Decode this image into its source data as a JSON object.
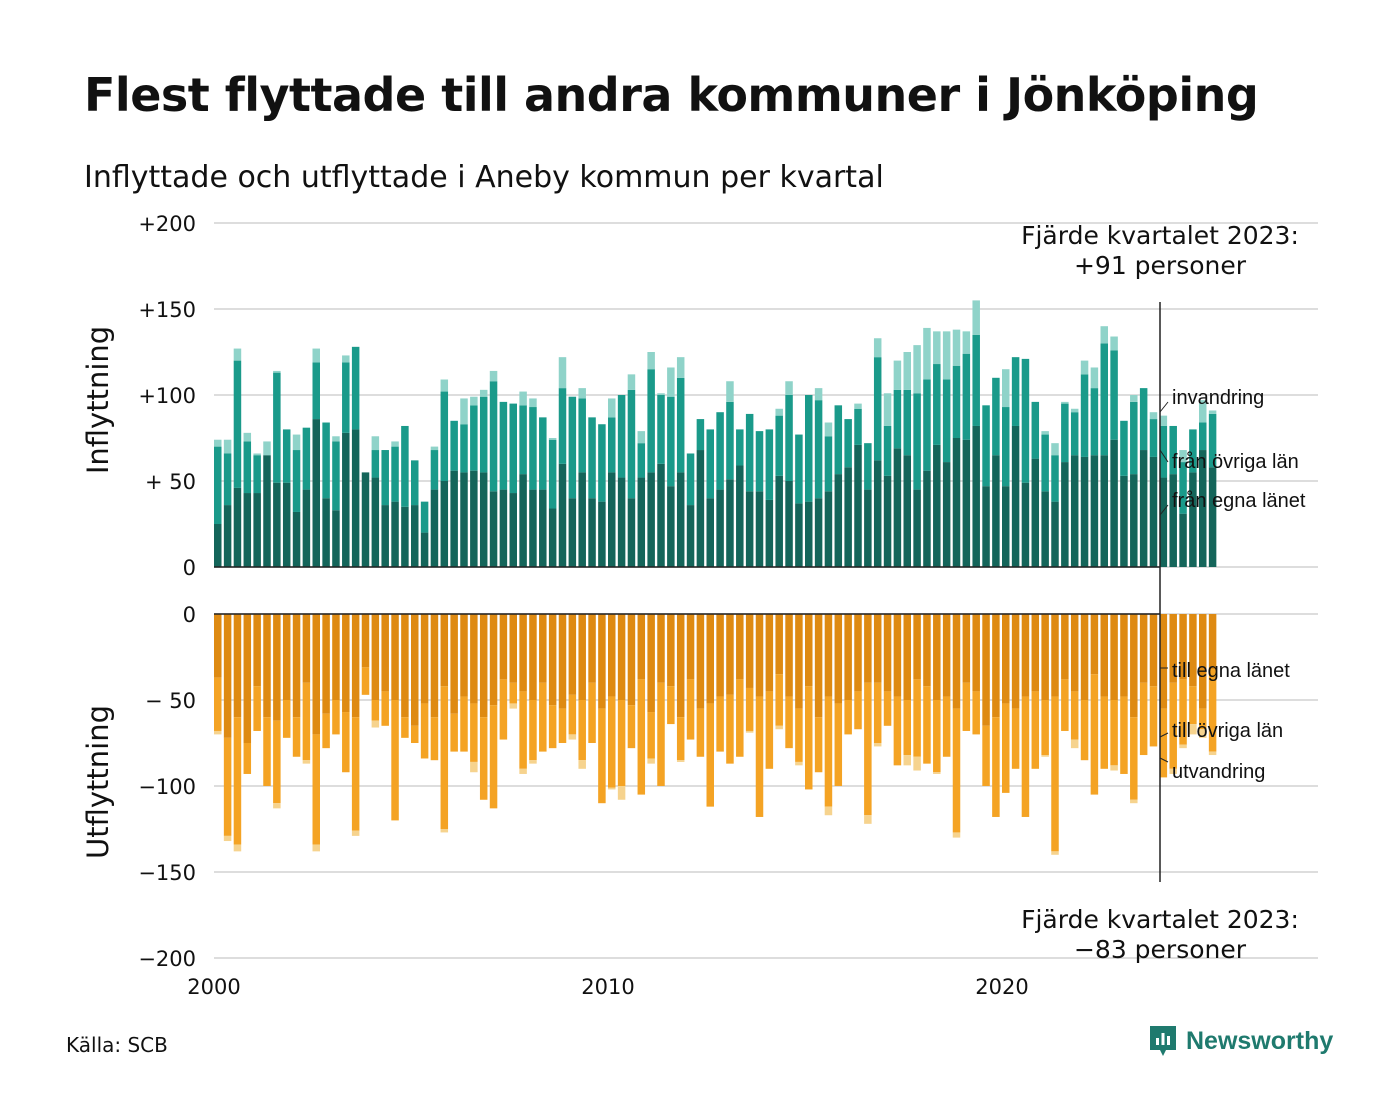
{
  "title": "Flest flyttade till andra kommuner i Jönköping",
  "subtitle": "Inflyttade och utflyttade i Aneby kommun per kvartal",
  "source": "Källa: SCB",
  "logo_text": "Newsworthy",
  "colors": {
    "in_own": "#14655a",
    "in_other": "#1a9a8a",
    "in_immig": "#8fd3c9",
    "out_own": "#de8a12",
    "out_other": "#f4a324",
    "out_emig": "#f6d38e",
    "grid": "#dddddd",
    "logo": "#1f7a6e"
  },
  "annotation_top": {
    "line1": "Fjärde kvartalet 2023:",
    "line2": "+91 personer"
  },
  "annotation_bottom": {
    "line1": "Fjärde kvartalet 2023:",
    "line2": "−83 personer"
  },
  "chart_data": [
    {
      "type": "bar",
      "stacked": true,
      "ylabel": "Inflyttning",
      "ylim": [
        0,
        200
      ],
      "yticks": [
        {
          "value": 0,
          "label": "0"
        },
        {
          "value": 50,
          "label": "+ 50"
        },
        {
          "value": 100,
          "label": "+100"
        },
        {
          "value": 150,
          "label": "+150"
        },
        {
          "value": 200,
          "label": "+200"
        }
      ],
      "xticks": [
        {
          "value": 2000,
          "label": "2000"
        },
        {
          "value": 2010,
          "label": "2010"
        },
        {
          "value": 2020,
          "label": "2020"
        }
      ],
      "period": "2000 Q1 – 2023 Q4, per kvartal",
      "series": [
        {
          "name": "från egna länet",
          "values": [
            25,
            36,
            46,
            43,
            43,
            65,
            49,
            49,
            32,
            45,
            86,
            40,
            33,
            78,
            80,
            55,
            52,
            36,
            38,
            35,
            36,
            20,
            45,
            50,
            56,
            55,
            56,
            55,
            44,
            45,
            43,
            54,
            45,
            45,
            34,
            60,
            40,
            55,
            40,
            38,
            55,
            52,
            40,
            52,
            55,
            60,
            47,
            55,
            36,
            68,
            40,
            45,
            51,
            59,
            44,
            44,
            39,
            53,
            50,
            37,
            38,
            40,
            44,
            54,
            58,
            71,
            45,
            62,
            53,
            69,
            65,
            45,
            56,
            71,
            61,
            75,
            74,
            82,
            47,
            65,
            47,
            82,
            49,
            63,
            44,
            38,
            61,
            65,
            64,
            65,
            65,
            74,
            53,
            54,
            68,
            64,
            52,
            54,
            31,
            55,
            68,
            58
          ]
        },
        {
          "name": "från övriga län",
          "values": [
            45,
            30,
            74,
            30,
            22,
            0,
            64,
            31,
            36,
            36,
            33,
            44,
            40,
            41,
            48,
            0,
            16,
            32,
            32,
            47,
            26,
            18,
            23,
            52,
            29,
            28,
            38,
            44,
            64,
            51,
            52,
            40,
            48,
            42,
            40,
            44,
            59,
            43,
            47,
            45,
            32,
            48,
            63,
            20,
            60,
            40,
            52,
            55,
            30,
            18,
            40,
            45,
            45,
            21,
            45,
            35,
            41,
            35,
            50,
            40,
            62,
            57,
            32,
            40,
            28,
            21,
            27,
            60,
            29,
            34,
            38,
            56,
            53,
            47,
            48,
            42,
            50,
            53,
            47,
            45,
            46,
            40,
            72,
            33,
            33,
            27,
            34,
            25,
            48,
            39,
            65,
            52,
            32,
            42,
            36,
            22,
            30,
            28,
            30,
            25,
            16,
            31
          ]
        },
        {
          "name": "invandring",
          "values": [
            4,
            8,
            7,
            5,
            1,
            8,
            1,
            0,
            9,
            0,
            8,
            0,
            3,
            4,
            0,
            0,
            8,
            0,
            3,
            0,
            0,
            0,
            2,
            7,
            0,
            15,
            5,
            4,
            6,
            0,
            0,
            8,
            5,
            0,
            1,
            18,
            0,
            6,
            0,
            0,
            11,
            0,
            9,
            7,
            10,
            1,
            17,
            12,
            0,
            0,
            0,
            0,
            12,
            0,
            0,
            0,
            0,
            4,
            8,
            0,
            0,
            7,
            8,
            0,
            0,
            3,
            0,
            11,
            19,
            17,
            22,
            28,
            30,
            19,
            28,
            21,
            13,
            20,
            0,
            0,
            22,
            0,
            0,
            0,
            2,
            7,
            1,
            2,
            8,
            12,
            10,
            8,
            0,
            4,
            0,
            4,
            6,
            0,
            7,
            0,
            13,
            2
          ]
        }
      ]
    },
    {
      "type": "bar",
      "stacked": true,
      "ylabel": "Utflyttning",
      "ylim": [
        -200,
        0
      ],
      "yticks": [
        {
          "value": 0,
          "label": "0"
        },
        {
          "value": -50,
          "label": "− 50"
        },
        {
          "value": -100,
          "label": "−100"
        },
        {
          "value": -150,
          "label": "−150"
        },
        {
          "value": -200,
          "label": "−200"
        }
      ],
      "xticks": [
        {
          "value": 2000,
          "label": "2000"
        },
        {
          "value": 2010,
          "label": "2010"
        },
        {
          "value": 2020,
          "label": "2020"
        }
      ],
      "period": "2000 Q1 – 2023 Q4, per kvartal",
      "series": [
        {
          "name": "till egna länet",
          "values": [
            -37,
            -72,
            -60,
            -75,
            -42,
            -60,
            -62,
            -50,
            -60,
            -40,
            -70,
            -58,
            -50,
            -57,
            -60,
            -31,
            -50,
            -45,
            -50,
            -60,
            -65,
            -52,
            -60,
            -42,
            -58,
            -48,
            -52,
            -60,
            -53,
            -38,
            -40,
            -45,
            -50,
            -40,
            -53,
            -55,
            -47,
            -50,
            -40,
            -55,
            -48,
            -50,
            -53,
            -38,
            -57,
            -40,
            -42,
            -60,
            -38,
            -55,
            -52,
            -48,
            -47,
            -38,
            -43,
            -48,
            -45,
            -35,
            -48,
            -55,
            -42,
            -60,
            -48,
            -52,
            -50,
            -45,
            -40,
            -40,
            -45,
            -48,
            -50,
            -38,
            -42,
            -50,
            -48,
            -55,
            -40,
            -45,
            -65,
            -60,
            -52,
            -55,
            -48,
            -45,
            -50,
            -48,
            -38,
            -45,
            -50,
            -35,
            -48,
            -50,
            -48,
            -60,
            -40,
            -42,
            -55,
            -40,
            -38,
            -42,
            -55,
            -32
          ]
        },
        {
          "name": "till övriga län",
          "values": [
            -31,
            -57,
            -74,
            -18,
            -26,
            -40,
            -48,
            -22,
            -23,
            -45,
            -64,
            -20,
            -20,
            -35,
            -66,
            -16,
            -12,
            -20,
            -70,
            -12,
            -10,
            -32,
            -25,
            -83,
            -22,
            -32,
            -34,
            -48,
            -60,
            -35,
            -12,
            -45,
            -35,
            -40,
            -25,
            -20,
            -23,
            -35,
            -35,
            -55,
            -53,
            -50,
            -25,
            -67,
            -27,
            -60,
            -22,
            -25,
            -35,
            -28,
            -60,
            -32,
            -40,
            -45,
            -25,
            -70,
            -45,
            -30,
            -30,
            -31,
            -60,
            -32,
            -64,
            -48,
            -20,
            -22,
            -77,
            -35,
            -20,
            -40,
            -32,
            -45,
            -45,
            -42,
            -35,
            -72,
            -28,
            -25,
            -35,
            -58,
            -52,
            -35,
            -70,
            -45,
            -32,
            -90,
            -30,
            -28,
            -35,
            -70,
            -42,
            -38,
            -45,
            -48,
            -42,
            -35,
            -40,
            -50,
            -38,
            -22,
            -12,
            -48
          ]
        },
        {
          "name": "utvandring",
          "values": [
            -2,
            -3,
            -4,
            0,
            0,
            0,
            -3,
            0,
            0,
            -2,
            -4,
            0,
            0,
            0,
            -3,
            0,
            -4,
            0,
            0,
            0,
            0,
            0,
            0,
            -2,
            0,
            0,
            -6,
            0,
            0,
            0,
            -3,
            -3,
            -2,
            0,
            0,
            0,
            -3,
            -5,
            0,
            0,
            -1,
            -8,
            0,
            0,
            -3,
            0,
            0,
            -1,
            0,
            0,
            0,
            0,
            0,
            0,
            -1,
            0,
            0,
            -2,
            0,
            -2,
            0,
            0,
            -5,
            0,
            0,
            0,
            -5,
            -2,
            0,
            0,
            -6,
            -8,
            0,
            -1,
            0,
            -3,
            0,
            0,
            0,
            0,
            0,
            0,
            0,
            0,
            -1,
            -2,
            0,
            -5,
            0,
            0,
            0,
            -3,
            0,
            -2,
            0,
            0,
            0,
            -3,
            -2,
            -6,
            -5,
            -2
          ]
        }
      ]
    }
  ],
  "segment_labels_in": [
    "invandring",
    "från övriga län",
    "från egna länet"
  ],
  "segment_labels_out": [
    "till egna länet",
    "till övriga län",
    "utvandring"
  ]
}
